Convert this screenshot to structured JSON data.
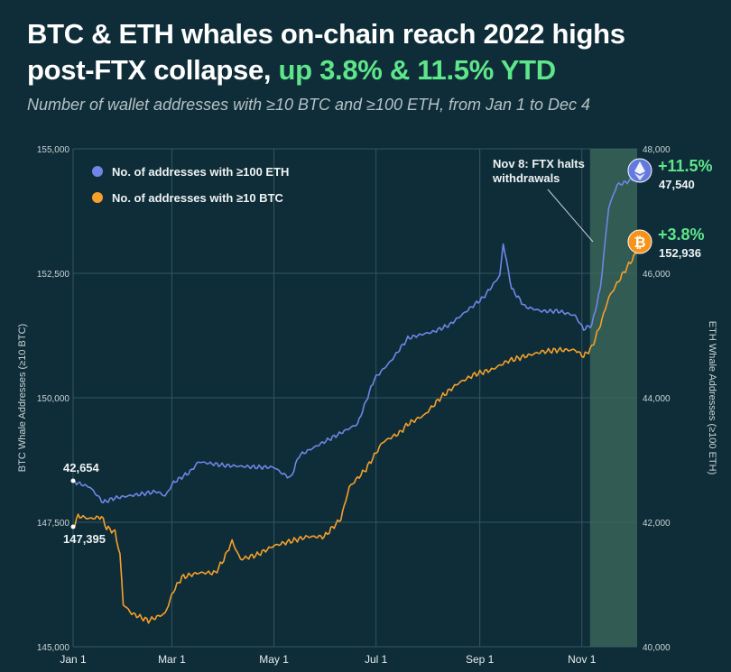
{
  "title": {
    "line1": "BTC & ETH whales on-chain reach 2022 highs",
    "line2_plain": "post-FTX collapse, ",
    "line2_highlight": "up 3.8% & 11.5% YTD"
  },
  "subtitle": "Number of wallet addresses with ≥10 BTC and ≥100 ETH, from Jan 1 to Dec 4",
  "colors": {
    "background": "#0f2d38",
    "eth": "#6f86e6",
    "btc": "#f5a02a",
    "highlight": "#5ee68b",
    "shade": "#3d6b5c"
  },
  "chart_data": {
    "type": "line",
    "title": "BTC & ETH whales on-chain reach 2022 highs post-FTX collapse",
    "xlabel": "",
    "ylabel_left": "BTC Whale Addresses (≥10 BTC)",
    "ylabel_right": "ETH Whale Addresses (≥100 ETH)",
    "x_unit": "day of year 2022 (0 = Jan 1)",
    "xlim": [
      0,
      337
    ],
    "x_ticks": [
      {
        "day": 0,
        "label": "Jan 1"
      },
      {
        "day": 59,
        "label": "Mar 1"
      },
      {
        "day": 120,
        "label": "May 1"
      },
      {
        "day": 181,
        "label": "Jul 1"
      },
      {
        "day": 243,
        "label": "Sep 1"
      },
      {
        "day": 304,
        "label": "Nov 1"
      }
    ],
    "ylim_left": [
      145000,
      155000
    ],
    "yticks_left": [
      "145,000",
      "147,500",
      "150,000",
      "152,500",
      "155,000"
    ],
    "yticks_left_values": [
      145000,
      147500,
      150000,
      152500,
      155000
    ],
    "ylim_right": [
      40000,
      48000
    ],
    "yticks_right": [
      "40,000",
      "42,000",
      "44,000",
      "46,000",
      "48,000"
    ],
    "yticks_right_values": [
      40000,
      42000,
      44000,
      46000,
      48000
    ],
    "grid": true,
    "legend_position": "top-left",
    "series": [
      {
        "name": "No. of addresses with ≥100 ETH",
        "axis": "right",
        "x": [
          0,
          10,
          18,
          25,
          40,
          50,
          55,
          60,
          70,
          75,
          90,
          110,
          120,
          125,
          130,
          135,
          150,
          160,
          170,
          175,
          180,
          190,
          200,
          210,
          215,
          225,
          235,
          245,
          250,
          255,
          257,
          262,
          270,
          280,
          290,
          300,
          305,
          310,
          315,
          320,
          325,
          330,
          337
        ],
        "values": [
          42654,
          42566,
          42320,
          42392,
          42450,
          42494,
          42421,
          42639,
          42813,
          42972,
          42914,
          42885,
          42885,
          42784,
          42711,
          43073,
          43291,
          43436,
          43581,
          43943,
          44305,
          44595,
          44957,
          45030,
          45058,
          45174,
          45392,
          45609,
          45783,
          45971,
          46479,
          45754,
          45464,
          45392,
          45392,
          45319,
          45102,
          45174,
          45754,
          47058,
          47420,
          47460,
          47540
        ]
      },
      {
        "name": "No. of addresses with ≥10 BTC",
        "axis": "left",
        "x": [
          0,
          3,
          10,
          17,
          20,
          25,
          28,
          30,
          35,
          45,
          55,
          60,
          65,
          75,
          85,
          90,
          95,
          100,
          110,
          120,
          130,
          140,
          150,
          160,
          165,
          175,
          185,
          195,
          200,
          210,
          220,
          230,
          240,
          250,
          260,
          270,
          280,
          290,
          300,
          305,
          310,
          315,
          320,
          328,
          337
        ],
        "values": [
          147395,
          147627,
          147572,
          147609,
          147391,
          147301,
          146848,
          145852,
          145670,
          145525,
          145670,
          146123,
          146395,
          146485,
          146485,
          146757,
          147120,
          146757,
          146848,
          147029,
          147120,
          147210,
          147210,
          147572,
          148206,
          148569,
          149112,
          149293,
          149475,
          149656,
          150018,
          150290,
          150471,
          150562,
          150743,
          150833,
          150924,
          150960,
          150960,
          150833,
          151014,
          151467,
          152011,
          152464,
          152936
        ]
      }
    ],
    "shaded_region": {
      "from_day": 311,
      "to_day": 337
    },
    "annotation": "Nov 8: FTX halts withdrawals",
    "annotation_lines": [
      "Nov 8: FTX halts",
      "withdrawals"
    ],
    "start_labels": {
      "eth": "42,654",
      "btc": "147,395"
    },
    "end_labels": {
      "eth_pct": "+11.5%",
      "eth_value": "47,540",
      "btc_pct": "+3.8%",
      "btc_value": "152,936"
    }
  }
}
